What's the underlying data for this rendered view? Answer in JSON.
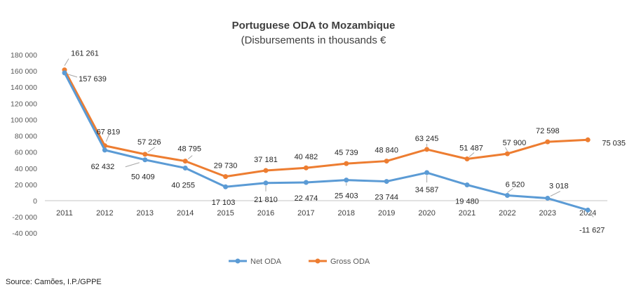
{
  "chart_data": {
    "type": "line",
    "title": "Portuguese ODA to Mozambique",
    "subtitle": "(Disbursements in thousands €",
    "x": [
      "2011",
      "2012",
      "2013",
      "2014",
      "2015",
      "2016",
      "2017",
      "2018",
      "2019",
      "2020",
      "2021",
      "2022",
      "2023",
      "2024"
    ],
    "yticks": [
      "180 000",
      "160 000",
      "140 000",
      "120 000",
      "100 000",
      "80 000",
      "60 000",
      "40 000",
      "20 000",
      "0",
      "-20 000",
      "-40 000"
    ],
    "ytick_values": [
      180000,
      160000,
      140000,
      120000,
      100000,
      80000,
      60000,
      40000,
      20000,
      0,
      -20000,
      -40000
    ],
    "ylim": [
      -40000,
      180000
    ],
    "series": [
      {
        "name": "Net ODA",
        "color": "#5B9BD5",
        "values": [
          157639,
          62432,
          50409,
          40255,
          17103,
          21810,
          22474,
          25403,
          23744,
          34587,
          19480,
          6520,
          3018,
          -11627
        ],
        "labels": [
          "157 639",
          "62 432",
          "50 409",
          "40 255",
          "17 103",
          "21 810",
          "22 474",
          "25 403",
          "23 744",
          "34 587",
          "19 480",
          "6 520",
          "3 018",
          "-11 627"
        ]
      },
      {
        "name": "Gross ODA",
        "color": "#ED7D31",
        "values": [
          161261,
          67819,
          57226,
          48795,
          29730,
          37181,
          40482,
          45739,
          48840,
          63245,
          51487,
          57900,
          72598,
          75035
        ],
        "labels": [
          "161 261",
          "67 819",
          "57 226",
          "48 795",
          "29 730",
          "37 181",
          "40 482",
          "45 739",
          "48 840",
          "63 245",
          "51 487",
          "57 900",
          "72 598",
          "75 035"
        ]
      }
    ],
    "legend": "bottom",
    "grid": false
  },
  "source": "Source: Camões, I.P./GPPE"
}
